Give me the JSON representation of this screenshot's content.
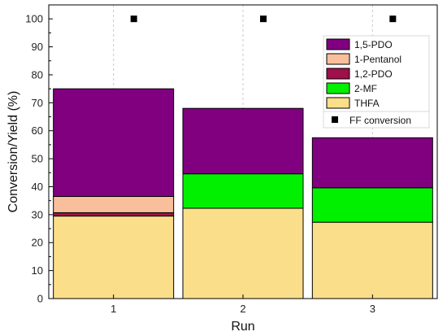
{
  "chart_data": {
    "type": "bar",
    "stacked": true,
    "xlabel": "Run",
    "ylabel": "Conversion/Yield (%)",
    "ylim": [
      0,
      105
    ],
    "yticks": [
      0,
      10,
      20,
      30,
      40,
      50,
      60,
      70,
      80,
      90,
      100
    ],
    "categories": [
      "1",
      "2",
      "3"
    ],
    "grid": "vertical",
    "series": [
      {
        "name": "THFA",
        "color": "#FBDE8A",
        "values": [
          29.5,
          32.3,
          27.3
        ]
      },
      {
        "name": "2-MF",
        "color": "#00F000",
        "values": [
          0,
          12.3,
          12.3
        ]
      },
      {
        "name": "1,2-PDO",
        "color": "#A0104A",
        "values": [
          1.2,
          0,
          0
        ]
      },
      {
        "name": "1-Pentanol",
        "color": "#F9BE9B",
        "values": [
          5.8,
          0,
          0
        ]
      },
      {
        "name": "1,5-PDO",
        "color": "#800080",
        "values": [
          38.5,
          23.4,
          17.9
        ]
      }
    ],
    "legend_order": [
      "1,5-PDO",
      "1-Pentanol",
      "1,2-PDO",
      "2-MF",
      "THFA"
    ],
    "scatter": {
      "name": "FF conversion",
      "marker": "square",
      "color": "#000000",
      "values": [
        100,
        100,
        100
      ]
    }
  }
}
